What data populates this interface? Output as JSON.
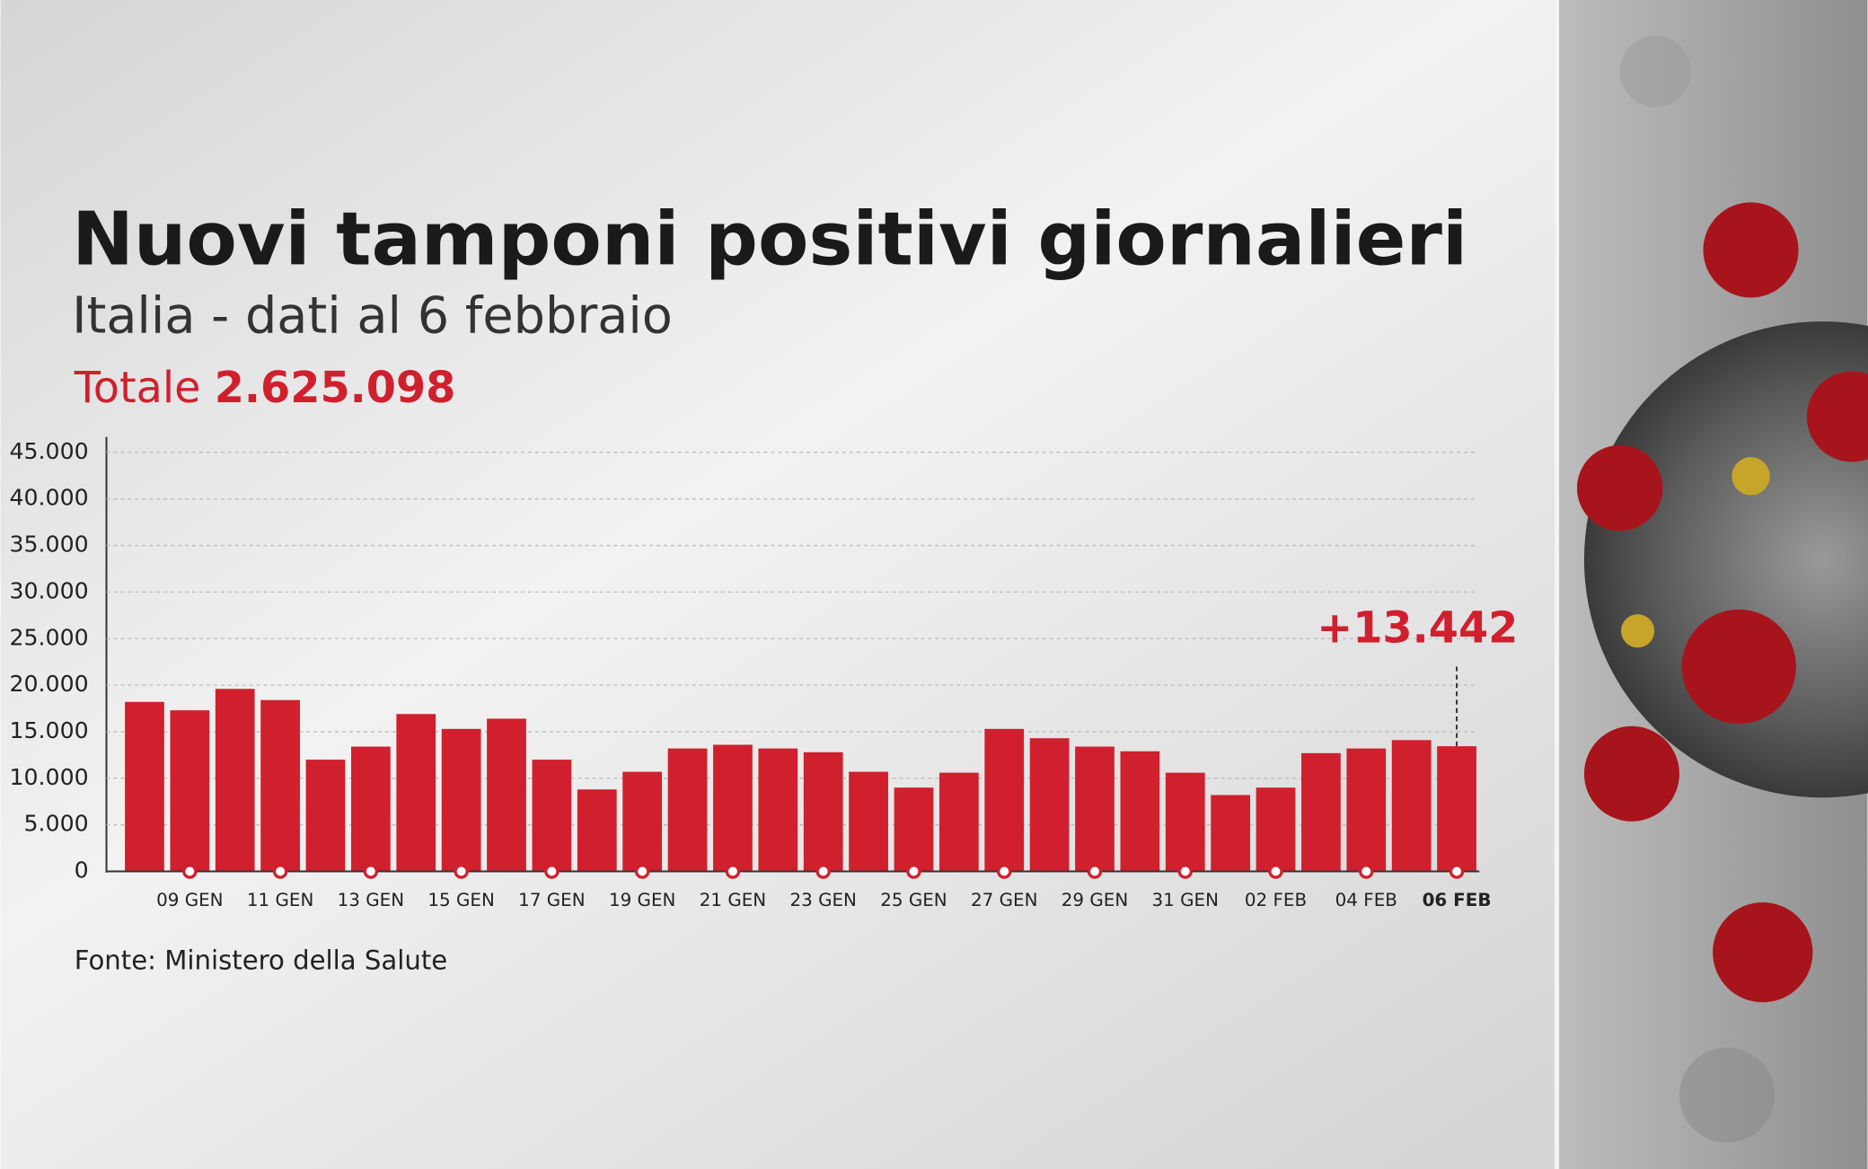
{
  "chart_data": {
    "type": "bar",
    "title": "Nuovi tamponi positivi giornalieri",
    "subtitle": "Italia - dati al 6 febbraio",
    "total_label": "Totale",
    "total": "2.625.098",
    "source": "Fonte: Ministero della Salute",
    "categories": [
      null,
      "09 GEN",
      null,
      "11 GEN",
      null,
      "13 GEN",
      null,
      "15 GEN",
      null,
      "17 GEN",
      null,
      "19 GEN",
      null,
      "21 GEN",
      null,
      "23 GEN",
      null,
      "25 GEN",
      null,
      "27 GEN",
      null,
      "29 GEN",
      null,
      "31 GEN",
      null,
      "02 FEB",
      null,
      "04 FEB",
      null,
      "06 FEB"
    ],
    "values": [
      18200,
      17300,
      19600,
      18400,
      12000,
      13400,
      16900,
      15300,
      16400,
      12000,
      8800,
      10700,
      13200,
      13600,
      13200,
      12800,
      10700,
      9000,
      10600,
      15300,
      14300,
      13400,
      12900,
      10600,
      8200,
      9000,
      12700,
      13200,
      14100,
      13442
    ],
    "value_labels": [
      null,
      null,
      null,
      null,
      null,
      null,
      null,
      null,
      null,
      null,
      null,
      null,
      null,
      null,
      null,
      null,
      null,
      null,
      null,
      null,
      null,
      null,
      null,
      null,
      null,
      null,
      null,
      null,
      null,
      "+13.442"
    ],
    "color": "#d0202e",
    "ylim": [
      0,
      45000
    ],
    "yticks": [
      0,
      {
        "value": 5000,
        "label": "5.000"
      },
      {
        "value": 10000,
        "label": "10.000"
      },
      {
        "value": 15000,
        "label": "15.000"
      },
      {
        "value": 20000,
        "label": "20.000"
      },
      {
        "value": 25000,
        "label": "25.000"
      },
      {
        "value": 30000,
        "label": "30.000"
      },
      {
        "value": 35000,
        "label": "35.000"
      },
      {
        "value": 40000,
        "label": "40.000"
      },
      {
        "value": 45000,
        "label": "45.000"
      }
    ],
    "grid": true
  }
}
